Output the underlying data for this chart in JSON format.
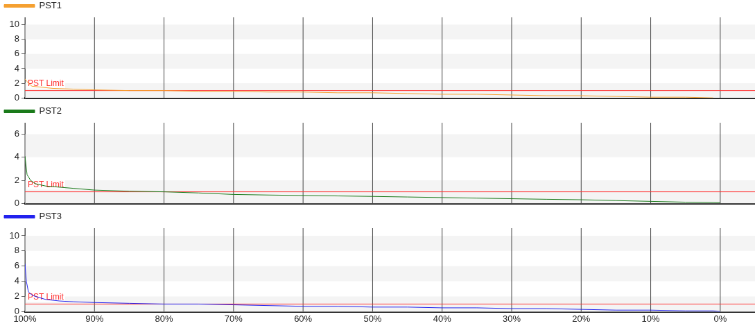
{
  "chart_data": [
    {
      "type": "line",
      "legend": "top left",
      "grid": true,
      "tick_labels": "y",
      "marker": "none",
      "xlim": [
        100,
        -5
      ],
      "xticks": [
        100,
        90,
        80,
        70,
        60,
        50,
        40,
        30,
        20,
        10,
        0
      ],
      "ylim": [
        0,
        11
      ],
      "yticks": [
        0,
        2,
        4,
        6,
        8,
        10
      ],
      "ref_lines": [
        {
          "axis": "y",
          "value": 1,
          "label": "PST Limit",
          "color": "#ff3333"
        }
      ],
      "series": [
        {
          "name": "PST1",
          "color": "#f5a030",
          "x": [
            100,
            99.5,
            99,
            98,
            96,
            93,
            90,
            85,
            80,
            75,
            70,
            65,
            60,
            55,
            50,
            45,
            40,
            35,
            30,
            25,
            20,
            15,
            10,
            5,
            1
          ],
          "values": [
            2.6,
            2.0,
            1.6,
            1.5,
            1.3,
            1.2,
            1.1,
            1.0,
            1.0,
            0.9,
            0.9,
            0.8,
            0.8,
            0.7,
            0.7,
            0.6,
            0.5,
            0.5,
            0.4,
            0.3,
            0.3,
            0.2,
            0.1,
            0.1,
            0.0
          ]
        }
      ]
    },
    {
      "type": "line",
      "legend": "top left",
      "grid": true,
      "tick_labels": "y",
      "marker": "none",
      "xlim": [
        100,
        -5
      ],
      "xticks": [
        100,
        90,
        80,
        70,
        60,
        50,
        40,
        30,
        20,
        10,
        0
      ],
      "ylim": [
        0,
        7
      ],
      "yticks": [
        0,
        2,
        4,
        6
      ],
      "ref_lines": [
        {
          "axis": "y",
          "value": 1,
          "label": "PST Limit",
          "color": "#ff3333"
        }
      ],
      "series": [
        {
          "name": "PST2",
          "color": "#1a7a1a",
          "x": [
            100,
            99.7,
            99.2,
            98.5,
            97,
            95,
            93,
            90,
            85,
            80,
            75,
            70,
            65,
            60,
            55,
            50,
            45,
            40,
            35,
            30,
            25,
            20,
            15,
            10,
            5,
            1,
            0
          ],
          "values": [
            4.1,
            2.5,
            2.0,
            1.7,
            1.5,
            1.4,
            1.3,
            1.15,
            1.05,
            1.0,
            0.9,
            0.77,
            0.72,
            0.68,
            0.64,
            0.6,
            0.55,
            0.5,
            0.45,
            0.4,
            0.35,
            0.31,
            0.24,
            0.17,
            0.1,
            0.07,
            0.05
          ]
        }
      ]
    },
    {
      "type": "line",
      "legend": "top left",
      "grid": true,
      "marker": "none",
      "xlim": [
        100,
        -5
      ],
      "xticks": [
        {
          "value": 100,
          "label": "100%"
        },
        {
          "value": 90,
          "label": "90%"
        },
        {
          "value": 80,
          "label": "80%"
        },
        {
          "value": 70,
          "label": "70%"
        },
        {
          "value": 60,
          "label": "60%"
        },
        {
          "value": 50,
          "label": "50%"
        },
        {
          "value": 40,
          "label": "40%"
        },
        {
          "value": 30,
          "label": "30%"
        },
        {
          "value": 20,
          "label": "20%"
        },
        {
          "value": 10,
          "label": "10%"
        },
        {
          "value": 0,
          "label": "0%"
        }
      ],
      "ylim": [
        0,
        11
      ],
      "yticks": [
        0,
        2,
        4,
        6,
        8,
        10
      ],
      "ref_lines": [
        {
          "axis": "y",
          "value": 1,
          "label": "PST Limit",
          "color": "#ff3333"
        }
      ],
      "series": [
        {
          "name": "PST3",
          "color": "#2222ee",
          "x": [
            100,
            99.8,
            99.5,
            99,
            98.5,
            97,
            95,
            93,
            90,
            85,
            80,
            75,
            70,
            65,
            60,
            55,
            50,
            45,
            40,
            35,
            30,
            25,
            20,
            15,
            10,
            5,
            1,
            0
          ],
          "values": [
            6.3,
            4.0,
            2.6,
            2.2,
            2.0,
            1.6,
            1.4,
            1.3,
            1.2,
            1.1,
            1.0,
            1.0,
            0.9,
            0.8,
            0.7,
            0.7,
            0.6,
            0.6,
            0.5,
            0.5,
            0.4,
            0.4,
            0.3,
            0.2,
            0.2,
            0.1,
            0.1,
            0
          ]
        }
      ]
    }
  ]
}
